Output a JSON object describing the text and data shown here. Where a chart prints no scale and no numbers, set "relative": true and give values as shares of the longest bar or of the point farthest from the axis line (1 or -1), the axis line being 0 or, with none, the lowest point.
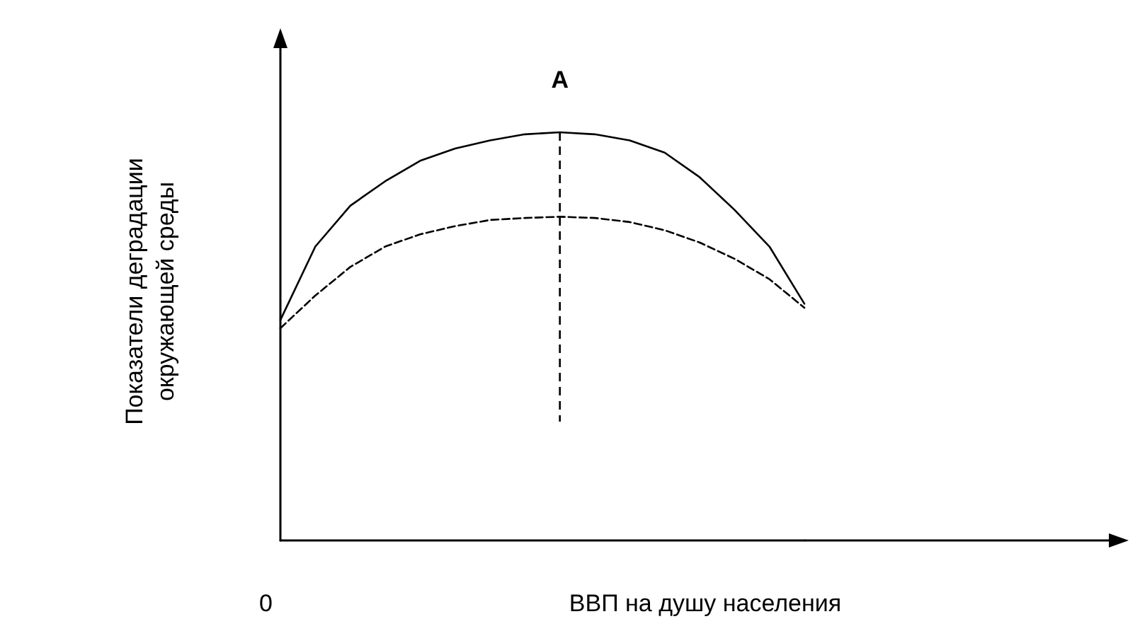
{
  "chart_data": {
    "type": "line",
    "relative": true,
    "xlabel": "ВВП на душу населения",
    "ylabel": "Показатели деградации\nокружающей среды",
    "annotations": [
      "0",
      "A"
    ],
    "categories": [
      null,
      null,
      null,
      null,
      null,
      null,
      null,
      null,
      null,
      null,
      null,
      null,
      null,
      null,
      null,
      null
    ],
    "marker": "none",
    "grid": false,
    "series": [
      {
        "color": "#000000",
        "line_style": "solid",
        "values": [
          0.54,
          0.72,
          0.82,
          0.88,
          0.93,
          0.96,
          0.98,
          0.995,
          1,
          0.995,
          0.98,
          0.95,
          0.89,
          0.81,
          0.72,
          0.58
        ]
      },
      {
        "color": "#000000",
        "line_style": "dashed",
        "values": [
          0.52,
          0.6,
          0.67,
          0.72,
          0.75,
          0.77,
          0.785,
          0.79,
          0.793,
          0.79,
          0.78,
          0.76,
          0.73,
          0.69,
          0.64,
          0.57
        ]
      }
    ]
  }
}
